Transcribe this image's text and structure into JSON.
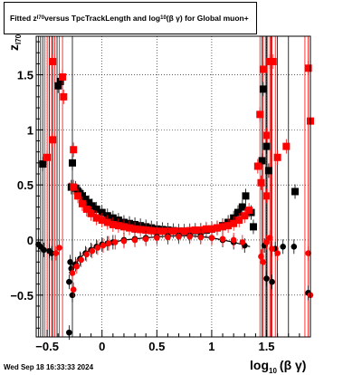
{
  "title": {
    "part1": "Fitted  z",
    "sub1": "I70",
    "part2": " versus TpcTrackLength and log",
    "sub2": "10",
    "part3": " (β  γ) for Global muon+"
  },
  "timestamp": "Wed Sep 18 16:33:33 2024",
  "colors": {
    "series_black": "#000000",
    "series_red": "#ff0000",
    "fit_red": "#cc0000"
  },
  "chart_data": {
    "type": "scatter",
    "xlabel": "log",
    "xlabel_sub": "10",
    "xlabel_tail": "(β γ)",
    "ylabel": "z",
    "ylabel_sub": "I70",
    "xlim": [
      -0.6,
      1.9
    ],
    "ylim": [
      -0.88,
      1.85
    ],
    "grid": true,
    "xticks": [
      {
        "v": -0.5,
        "label": "−0.5"
      },
      {
        "v": 0,
        "label": "0"
      },
      {
        "v": 0.5,
        "label": "0.5"
      },
      {
        "v": 1,
        "label": "1"
      },
      {
        "v": 1.5,
        "label": "1.5"
      }
    ],
    "yticks": [
      {
        "v": -0.5,
        "label": "−0.5"
      },
      {
        "v": 0,
        "label": "0"
      },
      {
        "v": 0.5,
        "label": "0.5"
      },
      {
        "v": 1,
        "label": "1"
      },
      {
        "v": 1.5,
        "label": "1.5"
      }
    ],
    "vertical_lines_red": [
      -0.52,
      -0.5,
      -0.46,
      -0.43,
      -0.39,
      -0.36,
      1.44,
      1.47,
      1.49,
      1.51,
      1.53,
      1.55,
      1.58,
      1.85,
      1.88
    ],
    "vertical_lines_black": [
      -0.58,
      -0.56,
      -0.54,
      -0.48,
      -0.45,
      -0.41,
      -0.27,
      1.46,
      1.5,
      1.54,
      1.6,
      1.7
    ],
    "series": [
      {
        "marker": "square",
        "color": "black",
        "points": [
          [
            -0.28,
            0.48
          ],
          [
            -0.24,
            0.47
          ],
          [
            -0.22,
            0.44
          ],
          [
            -0.2,
            0.42
          ],
          [
            -0.18,
            0.4
          ],
          [
            -0.15,
            0.37
          ],
          [
            -0.12,
            0.34
          ],
          [
            -0.09,
            0.31
          ],
          [
            -0.05,
            0.28
          ],
          [
            0.0,
            0.25
          ],
          [
            0.05,
            0.22
          ],
          [
            0.1,
            0.2
          ],
          [
            0.15,
            0.18
          ],
          [
            0.2,
            0.16
          ],
          [
            0.25,
            0.15
          ],
          [
            0.3,
            0.14
          ],
          [
            0.35,
            0.13
          ],
          [
            0.4,
            0.12
          ],
          [
            0.45,
            0.11
          ],
          [
            0.5,
            0.1
          ],
          [
            0.55,
            0.095
          ],
          [
            0.6,
            0.09
          ],
          [
            0.65,
            0.085
          ],
          [
            0.7,
            0.08
          ],
          [
            0.75,
            0.08
          ],
          [
            0.8,
            0.08
          ],
          [
            0.85,
            0.085
          ],
          [
            0.9,
            0.085
          ],
          [
            0.95,
            0.09
          ],
          [
            1.0,
            0.1
          ],
          [
            1.05,
            0.11
          ],
          [
            1.1,
            0.13
          ],
          [
            1.15,
            0.16
          ],
          [
            1.2,
            0.2
          ],
          [
            1.24,
            0.25
          ],
          [
            1.28,
            0.3
          ],
          [
            1.31,
            0.4
          ],
          [
            -0.54,
            0.69
          ],
          [
            -0.4,
            1.4
          ],
          [
            -0.38,
            1.44
          ],
          [
            -0.27,
            0.7
          ],
          [
            1.47,
            1.37
          ],
          [
            1.5,
            0.85
          ],
          [
            1.46,
            0.72
          ],
          [
            1.52,
            0.63
          ],
          [
            1.36,
            0.25
          ],
          [
            1.76,
            0.44
          ],
          [
            1.38,
            0.12
          ]
        ]
      },
      {
        "marker": "square",
        "color": "red",
        "points": [
          [
            -0.26,
            0.48
          ],
          [
            -0.22,
            0.4
          ],
          [
            -0.18,
            0.33
          ],
          [
            -0.14,
            0.28
          ],
          [
            -0.1,
            0.24
          ],
          [
            -0.05,
            0.2
          ],
          [
            0.0,
            0.18
          ],
          [
            0.05,
            0.16
          ],
          [
            0.1,
            0.14
          ],
          [
            0.15,
            0.13
          ],
          [
            0.2,
            0.12
          ],
          [
            0.25,
            0.11
          ],
          [
            0.3,
            0.1
          ],
          [
            0.35,
            0.095
          ],
          [
            0.4,
            0.09
          ],
          [
            0.45,
            0.085
          ],
          [
            0.5,
            0.08
          ],
          [
            0.55,
            0.08
          ],
          [
            0.6,
            0.08
          ],
          [
            0.65,
            0.08
          ],
          [
            0.7,
            0.08
          ],
          [
            0.75,
            0.08
          ],
          [
            0.8,
            0.085
          ],
          [
            0.85,
            0.09
          ],
          [
            0.9,
            0.09
          ],
          [
            0.95,
            0.1
          ],
          [
            1.0,
            0.1
          ],
          [
            1.05,
            0.11
          ],
          [
            1.1,
            0.12
          ],
          [
            1.15,
            0.13
          ],
          [
            1.2,
            0.15
          ],
          [
            1.25,
            0.18
          ],
          [
            1.3,
            0.22
          ],
          [
            1.34,
            0.27
          ],
          [
            -0.45,
            1.62
          ],
          [
            -0.45,
            0.91
          ],
          [
            -0.5,
            0.75
          ],
          [
            -0.35,
            1.3
          ],
          [
            -0.36,
            1.48
          ],
          [
            -0.26,
            0.82
          ],
          [
            1.44,
            1.14
          ],
          [
            1.5,
            0.95
          ],
          [
            1.53,
            1.62
          ],
          [
            1.56,
            1.62
          ],
          [
            1.47,
            1.55
          ],
          [
            1.42,
            0.67
          ],
          [
            1.45,
            0.52
          ],
          [
            1.5,
            0.4
          ],
          [
            1.6,
            0.75
          ],
          [
            1.68,
            0.85
          ],
          [
            1.88,
            1.56
          ],
          [
            1.9,
            1.08
          ]
        ]
      },
      {
        "marker": "circle",
        "color": "black",
        "points": [
          [
            -0.28,
            -0.26
          ],
          [
            -0.24,
            -0.22
          ],
          [
            -0.2,
            -0.17
          ],
          [
            -0.15,
            -0.12
          ],
          [
            -0.1,
            -0.09
          ],
          [
            -0.05,
            -0.06
          ],
          [
            0.0,
            -0.04
          ],
          [
            0.05,
            -0.03
          ],
          [
            0.1,
            -0.02
          ],
          [
            0.2,
            0.0
          ],
          [
            0.3,
            0.01
          ],
          [
            0.4,
            0.02
          ],
          [
            0.5,
            0.03
          ],
          [
            0.6,
            0.035
          ],
          [
            0.7,
            0.04
          ],
          [
            0.8,
            0.04
          ],
          [
            0.9,
            0.035
          ],
          [
            1.0,
            0.02
          ],
          [
            1.1,
            0.0
          ],
          [
            1.2,
            -0.02
          ],
          [
            1.3,
            -0.05
          ],
          [
            -0.58,
            -0.04
          ],
          [
            -0.56,
            -0.06
          ],
          [
            -0.53,
            -0.09
          ],
          [
            -0.48,
            -0.1
          ],
          [
            -0.46,
            -0.12
          ],
          [
            -0.3,
            -0.38
          ],
          [
            -0.27,
            -0.5
          ],
          [
            -0.3,
            -0.84
          ],
          [
            -0.29,
            -0.2
          ],
          [
            1.48,
            -0.05
          ],
          [
            1.58,
            -0.08
          ],
          [
            1.65,
            -0.06
          ],
          [
            1.75,
            -0.06
          ],
          [
            1.5,
            -0.35
          ],
          [
            1.55,
            -0.38
          ],
          [
            1.88,
            -0.48
          ]
        ]
      },
      {
        "marker": "circle",
        "color": "red",
        "points": [
          [
            -0.27,
            -0.3
          ],
          [
            -0.23,
            -0.24
          ],
          [
            -0.19,
            -0.18
          ],
          [
            -0.14,
            -0.13
          ],
          [
            -0.09,
            -0.1
          ],
          [
            -0.04,
            -0.07
          ],
          [
            0.01,
            -0.05
          ],
          [
            0.06,
            -0.03
          ],
          [
            0.12,
            -0.02
          ],
          [
            0.2,
            -0.01
          ],
          [
            0.3,
            0.0
          ],
          [
            0.4,
            0.01
          ],
          [
            0.5,
            0.02
          ],
          [
            0.6,
            0.025
          ],
          [
            0.7,
            0.03
          ],
          [
            0.8,
            0.03
          ],
          [
            0.9,
            0.025
          ],
          [
            1.0,
            0.02
          ],
          [
            1.1,
            0.01
          ],
          [
            1.2,
            0.0
          ],
          [
            1.28,
            -0.02
          ],
          [
            -0.42,
            -0.12
          ],
          [
            -0.39,
            -0.07
          ],
          [
            -0.26,
            -0.45
          ],
          [
            1.45,
            -0.15
          ],
          [
            1.5,
            -0.02
          ],
          [
            1.53,
            0.02
          ],
          [
            1.55,
            -0.08
          ],
          [
            1.47,
            -0.2
          ],
          [
            1.6,
            -0.12
          ],
          [
            1.9,
            -0.5
          ],
          [
            1.88,
            -0.12
          ]
        ]
      }
    ],
    "fit_curves": [
      {
        "color": "black",
        "points": [
          [
            -0.3,
            -0.3
          ],
          [
            -0.2,
            -0.16
          ],
          [
            -0.1,
            -0.08
          ],
          [
            0.0,
            -0.04
          ],
          [
            0.2,
            0.0
          ],
          [
            0.4,
            0.02
          ],
          [
            0.6,
            0.035
          ],
          [
            0.8,
            0.04
          ],
          [
            1.0,
            0.02
          ],
          [
            1.2,
            -0.02
          ],
          [
            1.35,
            -0.06
          ]
        ]
      },
      {
        "color": "red",
        "points": [
          [
            -0.3,
            0.52
          ],
          [
            -0.2,
            0.38
          ],
          [
            -0.1,
            0.26
          ],
          [
            0.0,
            0.2
          ],
          [
            0.2,
            0.14
          ],
          [
            0.4,
            0.1
          ],
          [
            0.6,
            0.08
          ],
          [
            0.8,
            0.08
          ],
          [
            1.0,
            0.1
          ],
          [
            1.2,
            0.16
          ],
          [
            1.35,
            0.26
          ]
        ]
      }
    ]
  }
}
